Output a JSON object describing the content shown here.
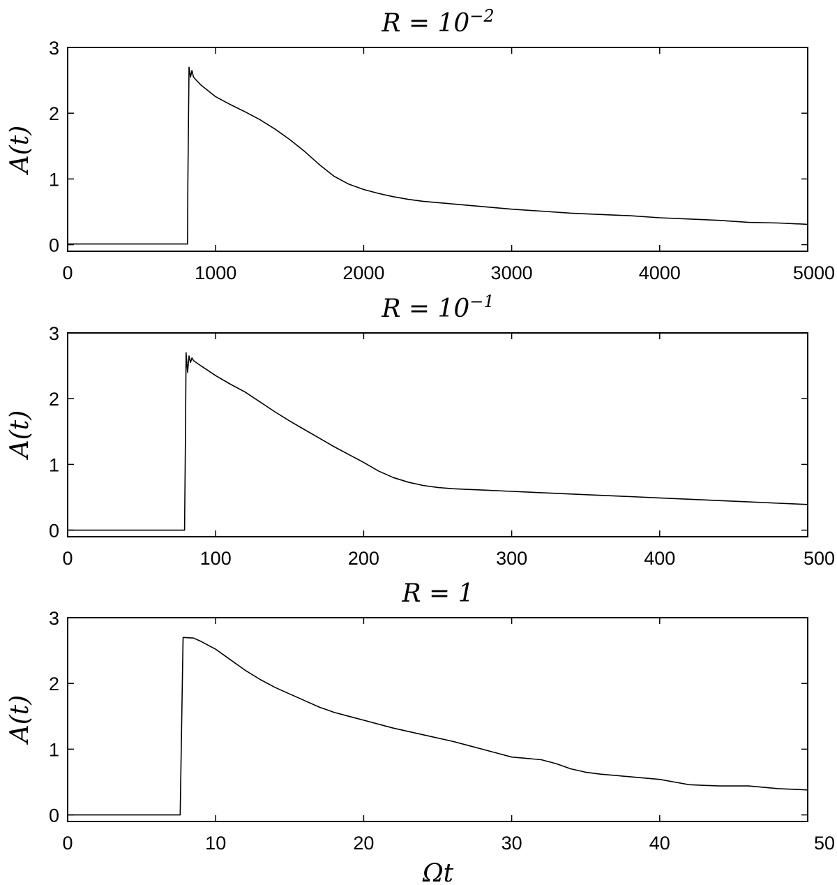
{
  "chart_data": [
    {
      "type": "line",
      "title": "R = 10",
      "title_exponent": "−2",
      "ylabel": "A(t)",
      "xlabel": "",
      "xlim": [
        0,
        5000
      ],
      "ylim": [
        -0.1,
        3
      ],
      "xticks": [
        0,
        1000,
        2000,
        3000,
        4000,
        5000
      ],
      "yticks": [
        0,
        1,
        2,
        3
      ],
      "xtick_labels": [
        "0",
        "1000",
        "2000",
        "3000",
        "4000",
        "5000"
      ],
      "ytick_labels": [
        "0",
        "1",
        "2",
        "3"
      ],
      "grid": false,
      "series": [
        {
          "x": [
            0,
            810,
            812,
            820,
            830,
            840,
            850,
            870,
            900,
            1000,
            1100,
            1200,
            1300,
            1400,
            1500,
            1600,
            1700,
            1800,
            1900,
            2000,
            2100,
            2200,
            2300,
            2400,
            2500,
            2600,
            2700,
            2800,
            2900,
            3000,
            3200,
            3400,
            3600,
            3800,
            4000,
            4200,
            4400,
            4600,
            4800,
            5000
          ],
          "y": [
            0.01,
            0.01,
            0.9,
            2.7,
            2.55,
            2.65,
            2.55,
            2.5,
            2.43,
            2.25,
            2.13,
            2.02,
            1.9,
            1.76,
            1.6,
            1.42,
            1.22,
            1.04,
            0.92,
            0.84,
            0.78,
            0.73,
            0.69,
            0.66,
            0.64,
            0.62,
            0.6,
            0.58,
            0.56,
            0.54,
            0.51,
            0.48,
            0.46,
            0.44,
            0.41,
            0.39,
            0.37,
            0.34,
            0.33,
            0.31
          ]
        }
      ]
    },
    {
      "type": "line",
      "title": "R = 10",
      "title_exponent": "−1",
      "ylabel": "A(t)",
      "xlabel": "",
      "xlim": [
        0,
        500
      ],
      "ylim": [
        -0.1,
        3
      ],
      "xticks": [
        0,
        100,
        200,
        300,
        400,
        500
      ],
      "yticks": [
        0,
        1,
        2,
        3
      ],
      "xtick_labels": [
        "0",
        "100",
        "200",
        "300",
        "400",
        "500"
      ],
      "ytick_labels": [
        "0",
        "1",
        "2",
        "3"
      ],
      "grid": false,
      "series": [
        {
          "x": [
            0,
            79,
            79.5,
            80,
            81,
            82,
            83,
            84,
            85,
            90,
            100,
            110,
            120,
            130,
            140,
            150,
            160,
            170,
            180,
            190,
            200,
            210,
            220,
            230,
            240,
            250,
            260,
            270,
            280,
            300,
            320,
            340,
            360,
            380,
            400,
            420,
            440,
            460,
            480,
            500
          ],
          "y": [
            0.0,
            0.0,
            1.2,
            2.7,
            2.4,
            2.65,
            2.55,
            2.62,
            2.58,
            2.5,
            2.35,
            2.22,
            2.1,
            1.95,
            1.8,
            1.66,
            1.53,
            1.4,
            1.27,
            1.15,
            1.03,
            0.9,
            0.8,
            0.73,
            0.68,
            0.65,
            0.63,
            0.62,
            0.61,
            0.59,
            0.57,
            0.55,
            0.53,
            0.51,
            0.49,
            0.47,
            0.45,
            0.43,
            0.41,
            0.39
          ]
        }
      ]
    },
    {
      "type": "line",
      "title": "R = 1",
      "title_exponent": "",
      "ylabel": "A(t)",
      "xlabel": "Ωt",
      "xlim": [
        0,
        50
      ],
      "ylim": [
        -0.1,
        3
      ],
      "xticks": [
        0,
        10,
        20,
        30,
        40,
        50
      ],
      "yticks": [
        0,
        1,
        2,
        3
      ],
      "xtick_labels": [
        "0",
        "10",
        "20",
        "30",
        "40",
        "50"
      ],
      "ytick_labels": [
        "0",
        "1",
        "2",
        "3"
      ],
      "grid": false,
      "series": [
        {
          "x": [
            0,
            7.6,
            7.8,
            8.5,
            9,
            10,
            11,
            12,
            13,
            14,
            15,
            16,
            17,
            18,
            19,
            20,
            22,
            24,
            26,
            27,
            28,
            29,
            30,
            31,
            32,
            33,
            34,
            35,
            36,
            38,
            40,
            41,
            42,
            44,
            46,
            48,
            50
          ],
          "y": [
            0.0,
            0.0,
            2.7,
            2.69,
            2.64,
            2.52,
            2.36,
            2.2,
            2.06,
            1.94,
            1.84,
            1.74,
            1.64,
            1.56,
            1.5,
            1.44,
            1.32,
            1.22,
            1.12,
            1.06,
            1.0,
            0.94,
            0.88,
            0.86,
            0.84,
            0.78,
            0.7,
            0.65,
            0.62,
            0.58,
            0.54,
            0.5,
            0.46,
            0.44,
            0.44,
            0.4,
            0.38
          ]
        }
      ]
    }
  ]
}
